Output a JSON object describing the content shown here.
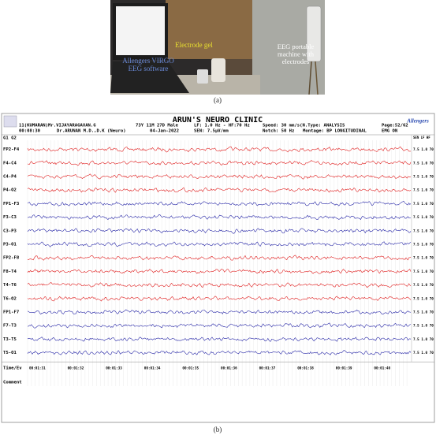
{
  "panel_a": {
    "caption": "(a)",
    "labels": {
      "gel": [
        "Electrode gel"
      ],
      "software": [
        "Allengers VIRGO",
        "EEG software"
      ],
      "machine": [
        "EEG portable",
        "machine with",
        "electrodes"
      ]
    }
  },
  "panel_b": {
    "caption": "(b)",
    "header": {
      "title": "ARUN'S NEURO CLINIC",
      "patient": "11(KUMARAN)Mr.VIJAYARAGAVAN.G",
      "time": "00:08:30",
      "doctor": "Dr.ARUNAN M.D.,D.K (Neuro)",
      "age": "73Y 11M 27D Male",
      "date": "04-Jan-2022",
      "filter": "LF: 1.0 Hz - HF:70 Hz",
      "sensitivity": "SEN: 7.5µV/mm",
      "notch": "Notch: 50 Hz",
      "speed": "Speed: 30 mm/s(N.Type: ANALYSIS",
      "montage": "Montage: BP LONGITUDINAL",
      "page": "Page:52/62",
      "emg": "EMG ON",
      "logo": "Allengers",
      "group": "G1 G2",
      "settings_header": "SEN LF HF"
    },
    "channels": [
      {
        "name": "FP2-F4",
        "color": "#e02020",
        "settings": "7.5 1.0 70"
      },
      {
        "name": "F4-C4",
        "color": "#e02020",
        "settings": "7.5 1.0 70"
      },
      {
        "name": "C4-P4",
        "color": "#e02020",
        "settings": "7.5 1.0 70"
      },
      {
        "name": "P4-O2",
        "color": "#e02020",
        "settings": "7.5 1.0 70"
      },
      {
        "name": "FP1-F3",
        "color": "#2a2aa8",
        "settings": "7.5 1.0 70"
      },
      {
        "name": "F3-C3",
        "color": "#2a2aa8",
        "settings": "7.5 1.0 70"
      },
      {
        "name": "C3-P3",
        "color": "#2a2aa8",
        "settings": "7.5 1.0 70"
      },
      {
        "name": "P3-O1",
        "color": "#2a2aa8",
        "settings": "7.5 1.0 70"
      },
      {
        "name": "FP2-F8",
        "color": "#e02020",
        "settings": "7.5 1.0 70"
      },
      {
        "name": "F8-T4",
        "color": "#e02020",
        "settings": "7.5 1.0 70"
      },
      {
        "name": "T4-T6",
        "color": "#e02020",
        "settings": "7.5 1.0 70"
      },
      {
        "name": "T6-O2",
        "color": "#e02020",
        "settings": "7.5 1.0 70"
      },
      {
        "name": "FP1-F7",
        "color": "#2a2aa8",
        "settings": "7.5 1.0 70"
      },
      {
        "name": "F7-T3",
        "color": "#2a2aa8",
        "settings": "7.5 1.0 70"
      },
      {
        "name": "T3-T5",
        "color": "#2a2aa8",
        "settings": "7.5 1.0 70"
      },
      {
        "name": "T5-O1",
        "color": "#2a2aa8",
        "settings": "7.5 1.0 70"
      }
    ],
    "time_label": "Time/Ev",
    "timestamps": [
      "00:01:31",
      "00:01:32",
      "00:01:33",
      "00:01:34",
      "00:01:35",
      "00:01:36",
      "00:01:37",
      "00:01:38",
      "00:01:39",
      "00:01:40"
    ],
    "comment_label": "Comment"
  }
}
